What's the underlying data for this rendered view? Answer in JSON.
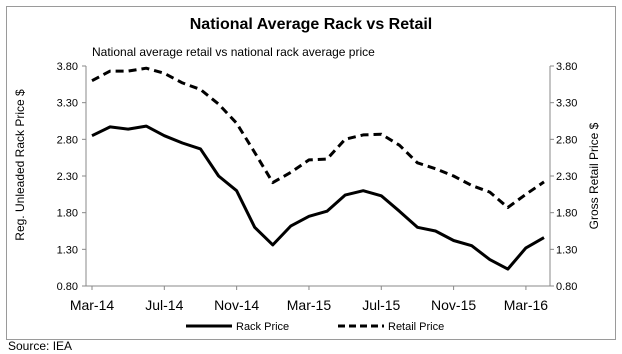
{
  "chart_data": {
    "type": "line",
    "title": "National Average Rack vs Retail",
    "subtitle": "National average retail vs national rack average price",
    "ylabel_left": "Reg. Unleaded Rack Price $",
    "ylabel_right": "Gross Retail Price $",
    "xlabel": "",
    "x_ticks": [
      "Mar-14",
      "Jul-14",
      "Nov-14",
      "Mar-15",
      "Jul-15",
      "Nov-15",
      "Mar-16"
    ],
    "y_ticks_left": [
      "0.80",
      "1.30",
      "1.80",
      "2.30",
      "2.80",
      "3.30",
      "3.80"
    ],
    "y_ticks_right": [
      "0.80",
      "1.30",
      "1.80",
      "2.30",
      "2.80",
      "3.30",
      "3.80"
    ],
    "ylim": [
      0.8,
      3.8
    ],
    "grid": false,
    "legend_position": "bottom",
    "x": [
      "Mar-14",
      "Apr-14",
      "May-14",
      "Jun-14",
      "Jul-14",
      "Aug-14",
      "Sep-14",
      "Oct-14",
      "Nov-14",
      "Dec-14",
      "Jan-15",
      "Feb-15",
      "Mar-15",
      "Apr-15",
      "May-15",
      "Jun-15",
      "Jul-15",
      "Aug-15",
      "Sep-15",
      "Oct-15",
      "Nov-15",
      "Dec-15",
      "Jan-16",
      "Feb-16",
      "Mar-16",
      "Apr-16"
    ],
    "series": [
      {
        "name": "Rack Price",
        "style": "solid",
        "values": [
          2.85,
          2.97,
          2.94,
          2.98,
          2.85,
          2.75,
          2.67,
          2.3,
          2.1,
          1.6,
          1.36,
          1.62,
          1.75,
          1.82,
          2.04,
          2.1,
          2.03,
          1.82,
          1.6,
          1.55,
          1.42,
          1.35,
          1.16,
          1.03,
          1.32,
          1.46
        ]
      },
      {
        "name": "Retail Price",
        "style": "dashed",
        "values": [
          3.6,
          3.73,
          3.73,
          3.77,
          3.7,
          3.57,
          3.48,
          3.28,
          3.02,
          2.62,
          2.21,
          2.35,
          2.52,
          2.53,
          2.8,
          2.86,
          2.87,
          2.72,
          2.48,
          2.4,
          2.3,
          2.17,
          2.08,
          1.87,
          2.05,
          2.22
        ]
      }
    ],
    "colors": {
      "line": "#000000",
      "frame": "#9a9a9a"
    }
  },
  "source": "Source: IEA"
}
